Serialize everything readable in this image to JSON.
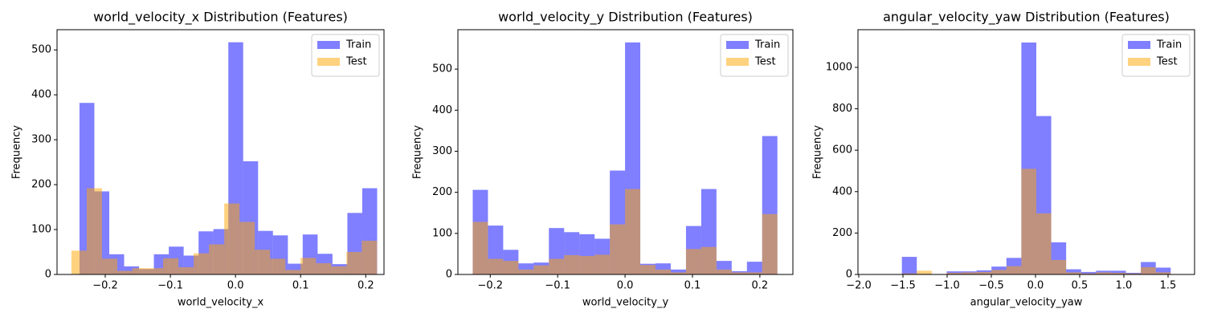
{
  "chart_data": [
    {
      "type": "histogram",
      "title": "world_velocity_x Distribution (Features)",
      "xlabel": "world_velocity_x",
      "ylabel": "Frequency",
      "legend": "upper right",
      "xlim": [
        -0.274,
        0.228
      ],
      "ylim": [
        0,
        545
      ],
      "xticks": [
        {
          "value": -0.2,
          "label": "−0.2"
        },
        {
          "value": -0.1,
          "label": "−0.1"
        },
        {
          "value": 0,
          "label": "0.0"
        },
        {
          "value": 0.1,
          "label": "0.1"
        },
        {
          "value": 0.2,
          "label": "0.2"
        }
      ],
      "yticks": [
        0,
        100,
        200,
        300,
        400,
        500
      ],
      "series": [
        {
          "name": "Train",
          "color": "#0000ff",
          "opacity": 0.5,
          "bins": [
            -0.2395,
            -0.2167,
            -0.1938,
            -0.171,
            -0.1481,
            -0.1253,
            -0.1024,
            -0.0796,
            -0.0567,
            -0.0339,
            -0.011,
            0.0118,
            0.0347,
            0.0575,
            0.0804,
            0.1032,
            0.1261,
            0.1489,
            0.1718,
            0.1946,
            0.2175
          ],
          "values": [
            382,
            185,
            45,
            18,
            12,
            45,
            62,
            42,
            96,
            101,
            517,
            252,
            97,
            87,
            24,
            89,
            46,
            23,
            137,
            192
          ]
        },
        {
          "name": "Test",
          "color": "#ffa500",
          "opacity": 0.5,
          "bins": [
            -0.2519,
            -0.2284,
            -0.205,
            -0.1815,
            -0.1581,
            -0.1346,
            -0.1111,
            -0.0877,
            -0.0642,
            -0.0407,
            -0.0173,
            0.0062,
            0.0296,
            0.0531,
            0.0766,
            0.1,
            0.1235,
            0.1469,
            0.1704,
            0.1939,
            0.2173
          ],
          "values": [
            53,
            192,
            35,
            8,
            14,
            14,
            36,
            16,
            47,
            67,
            158,
            117,
            55,
            35,
            10,
            37,
            25,
            18,
            50,
            75
          ]
        }
      ]
    },
    {
      "type": "histogram",
      "title": "world_velocity_y Distribution (Features)",
      "xlabel": "world_velocity_y",
      "ylabel": "Frequency",
      "legend": "upper right",
      "xlim": [
        -0.248,
        0.249
      ],
      "ylim": [
        0,
        596
      ],
      "xticks": [
        {
          "value": -0.2,
          "label": "−0.2"
        },
        {
          "value": -0.1,
          "label": "−0.1"
        },
        {
          "value": 0,
          "label": "0.0"
        },
        {
          "value": 0.1,
          "label": "0.1"
        },
        {
          "value": 0.2,
          "label": "0.2"
        }
      ],
      "yticks": [
        0,
        100,
        200,
        300,
        400,
        500
      ],
      "series": [
        {
          "name": "Train",
          "color": "#0000ff",
          "opacity": 0.5,
          "bins": [
            -0.226,
            -0.2034,
            -0.1808,
            -0.1582,
            -0.1356,
            -0.113,
            -0.0904,
            -0.0678,
            -0.0452,
            -0.0226,
            0,
            0.0226,
            0.0452,
            0.0678,
            0.0904,
            0.113,
            0.1356,
            0.1582,
            0.1808,
            0.2034,
            0.226
          ],
          "values": [
            206,
            119,
            60,
            27,
            29,
            113,
            103,
            98,
            87,
            253,
            565,
            26,
            27,
            12,
            118,
            208,
            33,
            8,
            31,
            337
          ]
        },
        {
          "name": "Test",
          "color": "#ffa500",
          "opacity": 0.5,
          "bins": [
            -0.226,
            -0.2034,
            -0.1808,
            -0.1582,
            -0.1356,
            -0.113,
            -0.0904,
            -0.0678,
            -0.0452,
            -0.0226,
            0,
            0.0226,
            0.0452,
            0.0678,
            0.0904,
            0.113,
            0.1356,
            0.1582,
            0.1808,
            0.2034,
            0.226
          ],
          "values": [
            128,
            38,
            33,
            12,
            22,
            38,
            47,
            45,
            48,
            122,
            208,
            23,
            12,
            5,
            62,
            67,
            12,
            5,
            5,
            147
          ]
        }
      ]
    },
    {
      "type": "histogram",
      "title": "angular_velocity_yaw Distribution (Features)",
      "xlabel": "angular_velocity_yaw",
      "ylabel": "Frequency",
      "legend": "upper right",
      "xlim": [
        -2.009,
        1.8
      ],
      "ylim": [
        0,
        1182
      ],
      "xticks": [
        {
          "value": -2,
          "label": "−2.0"
        },
        {
          "value": -1.5,
          "label": "−1.5"
        },
        {
          "value": -1,
          "label": "−1.0"
        },
        {
          "value": -0.5,
          "label": "−0.5"
        },
        {
          "value": 0,
          "label": "0.0"
        },
        {
          "value": 0.5,
          "label": "0.5"
        },
        {
          "value": 1,
          "label": "1.0"
        },
        {
          "value": 1.5,
          "label": "1.5"
        }
      ],
      "yticks": [
        0,
        200,
        400,
        600,
        800,
        1000
      ],
      "series": [
        {
          "name": "Train",
          "color": "#0000ff",
          "opacity": 0.5,
          "bins": [
            -1.85,
            -1.681,
            -1.512,
            -1.343,
            -1.174,
            -1.005,
            -0.836,
            -0.667,
            -0.498,
            -0.329,
            -0.16,
            0.009,
            0.178,
            0.347,
            0.516,
            0.685,
            0.854,
            1.023,
            1.192,
            1.361,
            1.53
          ],
          "values": [
            2,
            2,
            85,
            3,
            2,
            15,
            15,
            20,
            38,
            80,
            1120,
            765,
            155,
            25,
            12,
            18,
            18,
            8,
            60,
            33
          ]
        },
        {
          "name": "Test",
          "color": "#ffa500",
          "opacity": 0.5,
          "bins": [
            -1.85,
            -1.681,
            -1.512,
            -1.343,
            -1.174,
            -1.005,
            -0.836,
            -0.667,
            -0.498,
            -0.329,
            -0.16,
            0.009,
            0.178,
            0.347,
            0.516,
            0.685,
            0.854,
            1.023,
            1.192,
            1.361,
            1.53
          ],
          "values": [
            0,
            0,
            5,
            18,
            2,
            8,
            10,
            12,
            22,
            40,
            510,
            295,
            70,
            10,
            5,
            10,
            8,
            5,
            35,
            10
          ]
        }
      ]
    }
  ]
}
